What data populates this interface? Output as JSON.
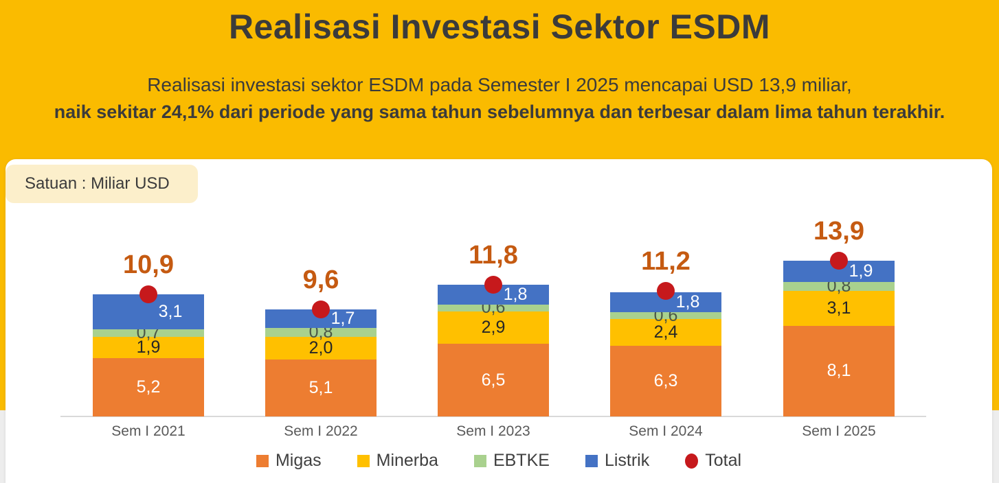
{
  "page": {
    "title": "Realisasi Investasi Sektor ESDM",
    "subtitle_line1": "Realisasi investasi sektor ESDM pada Semester I 2025 mencapai USD 13,9 miliar,",
    "subtitle_line2": "naik sekitar 24,1% dari periode yang sama tahun sebelumnya dan terbesar dalam lima tahun terakhir."
  },
  "card": {
    "unit_label": "Satuan : Miliar USD"
  },
  "colors": {
    "background_gold": "#FABB00",
    "background_gray": "#EDEDED",
    "card_white": "#FFFFFF",
    "unit_box_cream": "#FCEFCB",
    "heading_text": "#3B3B3B",
    "total_label_text": "#C55A11",
    "migas_orange": "#ED7D31",
    "minerba_yellow": "#FFC000",
    "ebtke_green": "#A9D18E",
    "listrik_blue": "#4472C4",
    "total_red": "#C6191C",
    "axis_line": "#D9D9D9",
    "axis_label_text": "#595959"
  },
  "chart_data": {
    "type": "bar",
    "stacked": true,
    "unit": "Miliar USD",
    "title": "Realisasi Investasi Sektor ESDM",
    "xlabel": "",
    "ylabel": "Miliar USD",
    "ylim": [
      0,
      15
    ],
    "grid": false,
    "legend_position": "bottom",
    "categories": [
      "Sem I 2021",
      "Sem I 2022",
      "Sem I 2023",
      "Sem I 2024",
      "Sem I 2025"
    ],
    "series": [
      {
        "name": "Migas",
        "color": "#ED7D31",
        "label_color": "#FFFFFF",
        "values": [
          5.2,
          5.1,
          6.5,
          6.3,
          8.1
        ],
        "labels": [
          "5,2",
          "5,1",
          "6,5",
          "6,3",
          "8,1"
        ],
        "label_offset_x": 0
      },
      {
        "name": "Minerba",
        "color": "#FFC000",
        "label_color": "#262626",
        "values": [
          1.9,
          2.0,
          2.9,
          2.4,
          3.1
        ],
        "labels": [
          "1,9",
          "2,0",
          "2,9",
          "2,4",
          "3,1"
        ],
        "label_offset_x": 0
      },
      {
        "name": "EBTKE",
        "color": "#A9D18E",
        "label_color": "#4B5747",
        "values": [
          0.7,
          0.8,
          0.6,
          0.6,
          0.8
        ],
        "labels": [
          "0,7",
          "0,8",
          "0,6",
          "0,6",
          "0,8"
        ],
        "label_offset_x": 0
      },
      {
        "name": "Listrik",
        "color": "#4472C4",
        "label_color": "#FFFFFF",
        "values": [
          3.1,
          1.7,
          1.8,
          1.8,
          1.9
        ],
        "labels": [
          "3,1",
          "1,7",
          "1,8",
          "1,8",
          "1,9"
        ],
        "label_offset_x": 32
      }
    ],
    "totals": {
      "name": "Total",
      "color": "#C6191C",
      "values": [
        10.9,
        9.6,
        11.8,
        11.2,
        13.9
      ],
      "labels": [
        "10,9",
        "9,6",
        "11,8",
        "11,2",
        "13,9"
      ]
    },
    "legend": [
      {
        "label": "Migas",
        "color": "#ED7D31",
        "shape": "square"
      },
      {
        "label": "Minerba",
        "color": "#FFC000",
        "shape": "square"
      },
      {
        "label": "EBTKE",
        "color": "#A9D18E",
        "shape": "square"
      },
      {
        "label": "Listrik",
        "color": "#4472C4",
        "shape": "square"
      },
      {
        "label": "Total",
        "color": "#C6191C",
        "shape": "circle"
      }
    ]
  }
}
